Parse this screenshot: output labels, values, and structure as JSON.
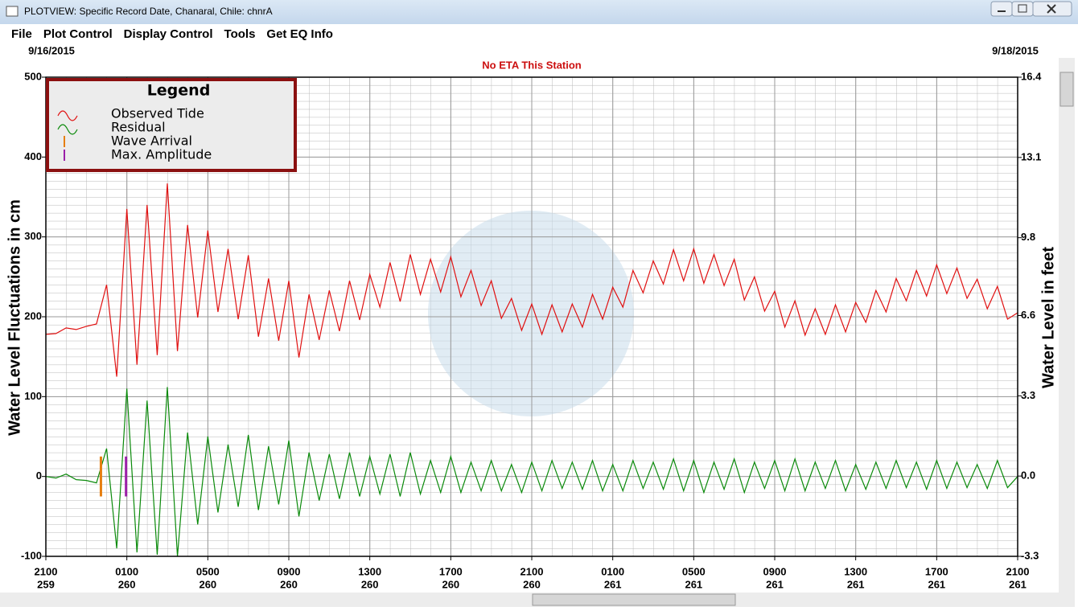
{
  "window": {
    "title": "PLOTVIEW: Specific Record Date, Chanaral, Chile: chnrA"
  },
  "menu": [
    "File",
    "Plot Control",
    "Display Control",
    "Tools",
    "Get EQ Info"
  ],
  "chart_data": {
    "type": "line",
    "subtitle": "No ETA This Station",
    "start_date": "9/16/2015",
    "end_date": "9/18/2015",
    "ylabel": "Water Level Fluctuations in cm",
    "y2label": "Water Level in feet",
    "legend": {
      "title": "Legend",
      "position": "upper-left"
    },
    "grid": true,
    "xlim": [
      0,
      48
    ],
    "xticks": [
      {
        "value": 0,
        "label": "2100",
        "day": "259"
      },
      {
        "value": 4,
        "label": "0100",
        "day": "260"
      },
      {
        "value": 8,
        "label": "0500",
        "day": "260"
      },
      {
        "value": 12,
        "label": "0900",
        "day": "260"
      },
      {
        "value": 16,
        "label": "1300",
        "day": "260"
      },
      {
        "value": 20,
        "label": "1700",
        "day": "260"
      },
      {
        "value": 24,
        "label": "2100",
        "day": "260"
      },
      {
        "value": 28,
        "label": "0100",
        "day": "261"
      },
      {
        "value": 32,
        "label": "0500",
        "day": "261"
      },
      {
        "value": 36,
        "label": "0900",
        "day": "261"
      },
      {
        "value": 40,
        "label": "1300",
        "day": "261"
      },
      {
        "value": 44,
        "label": "1700",
        "day": "261"
      },
      {
        "value": 48,
        "label": "2100",
        "day": "261"
      }
    ],
    "ylim": [
      -100,
      500
    ],
    "yticks": [
      -100,
      0,
      100,
      200,
      300,
      400,
      500
    ],
    "y2lim": [
      -3.3,
      16.4
    ],
    "y2ticks": [
      -3.3,
      {
        "value": 0,
        "label": "0.0"
      },
      3.3,
      6.6,
      9.8,
      13.1,
      16.4
    ],
    "x": [
      0,
      0.5,
      1,
      1.5,
      2,
      2.5,
      3,
      3.5,
      4,
      4.5,
      5,
      5.5,
      6,
      6.5,
      7,
      7.5,
      8,
      8.5,
      9,
      9.5,
      10,
      10.5,
      11,
      11.5,
      12,
      12.5,
      13,
      13.5,
      14,
      14.5,
      15,
      15.5,
      16,
      16.5,
      17,
      17.5,
      18,
      18.5,
      19,
      19.5,
      20,
      20.5,
      21,
      21.5,
      22,
      22.5,
      23,
      23.5,
      24,
      24.5,
      25,
      25.5,
      26,
      26.5,
      27,
      27.5,
      28,
      28.5,
      29,
      29.5,
      30,
      30.5,
      31,
      31.5,
      32,
      32.5,
      33,
      33.5,
      34,
      34.5,
      35,
      35.5,
      36,
      36.5,
      37,
      37.5,
      38,
      38.5,
      39,
      39.5,
      40,
      40.5,
      41,
      41.5,
      42,
      42.5,
      43,
      43.5,
      44,
      44.5,
      45,
      45.5,
      46,
      46.5,
      47,
      47.5,
      48
    ],
    "series": [
      {
        "name": "Observed Tide",
        "color": "#e01010",
        "values": [
          178,
          179,
          186,
          184,
          188,
          191,
          240,
          125,
          335,
          140,
          340,
          152,
          367,
          157,
          315,
          199,
          308,
          206,
          285,
          197,
          277,
          175,
          248,
          170,
          245,
          149,
          228,
          171,
          233,
          182,
          245,
          196,
          253,
          212,
          268,
          219,
          278,
          228,
          272,
          231,
          275,
          225,
          258,
          214,
          245,
          198,
          223,
          183,
          216,
          178,
          215,
          181,
          216,
          187,
          228,
          197,
          237,
          212,
          258,
          230,
          270,
          241,
          284,
          245,
          285,
          242,
          278,
          239,
          272,
          221,
          250,
          207,
          232,
          187,
          220,
          177,
          210,
          178,
          215,
          181,
          218,
          193,
          233,
          206,
          248,
          220,
          258,
          226,
          265,
          229,
          261,
          223,
          247,
          210,
          238,
          197,
          205
        ]
      },
      {
        "name": "Residual",
        "color": "#0a8a0a",
        "values": [
          0,
          -2,
          3,
          -4,
          -5,
          -8,
          35,
          -90,
          110,
          -95,
          95,
          -98,
          112,
          -100,
          55,
          -60,
          50,
          -45,
          40,
          -38,
          52,
          -42,
          38,
          -35,
          45,
          -50,
          30,
          -30,
          28,
          -28,
          30,
          -25,
          25,
          -22,
          28,
          -25,
          30,
          -22,
          20,
          -20,
          25,
          -20,
          18,
          -18,
          20,
          -18,
          15,
          -20,
          18,
          -18,
          20,
          -15,
          18,
          -16,
          20,
          -18,
          15,
          -18,
          20,
          -15,
          18,
          -16,
          22,
          -18,
          20,
          -20,
          18,
          -16,
          22,
          -20,
          18,
          -15,
          20,
          -18,
          22,
          -18,
          18,
          -15,
          20,
          -18,
          15,
          -16,
          18,
          -15,
          20,
          -14,
          18,
          -16,
          20,
          -15,
          18,
          -14,
          15,
          -15,
          20,
          -14,
          0
        ]
      }
    ],
    "markers": [
      {
        "name": "Wave Arrival",
        "color": "#e67e10",
        "x": 2.72,
        "y": [
          -25,
          25
        ]
      },
      {
        "name": "Max. Amplitude",
        "color": "#9b1fa8",
        "x": 3.96,
        "y": [
          -25,
          25
        ]
      }
    ]
  }
}
